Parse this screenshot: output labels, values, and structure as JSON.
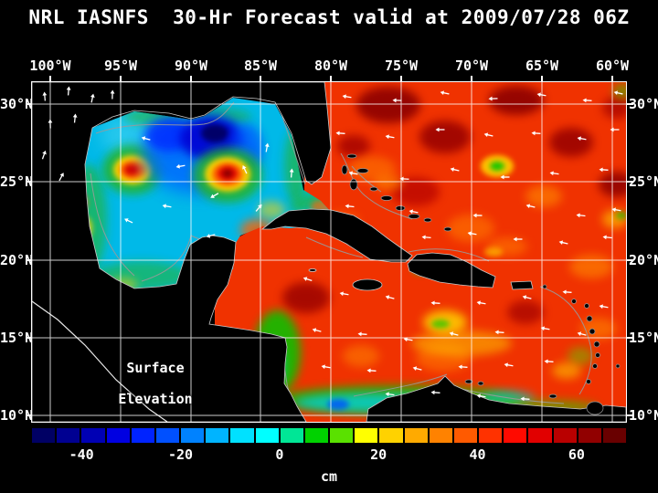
{
  "title": "NRL IASNFS  30-Hr Forecast valid at 2009/07/28 06Z",
  "plot": {
    "annotation": {
      "line1": "Surface",
      "line2": "Elevation"
    },
    "lon_labels": [
      "100°W",
      "95°W",
      "90°W",
      "85°W",
      "80°W",
      "75°W",
      "70°W",
      "65°W",
      "60°W"
    ],
    "lat_labels": [
      "30°N",
      "25°N",
      "20°N",
      "15°N",
      "10°N"
    ]
  },
  "colorbar": {
    "unit": "cm",
    "tick_labels": [
      "-40",
      "-20",
      "0",
      "20",
      "40",
      "60"
    ],
    "colors": [
      "#000064",
      "#000091",
      "#0000b4",
      "#0000e1",
      "#0023ff",
      "#0050ff",
      "#0082ff",
      "#00b4ff",
      "#00e1ff",
      "#00ffff",
      "#00e696",
      "#00d200",
      "#5ae100",
      "#ffff00",
      "#ffd200",
      "#ffaa00",
      "#ff8200",
      "#ff5a00",
      "#ff3200",
      "#ff0a00",
      "#e10000",
      "#b90000",
      "#910000",
      "#690000"
    ]
  },
  "chart_data": {
    "type": "heatmap",
    "title": "NRL IASNFS 30-Hr Forecast valid at 2009/07/28 06Z",
    "model": "NRL IASNFS",
    "forecast_hour": "30-Hr Forecast",
    "valid_time": "2009/07/28 06Z",
    "variable": "Surface Elevation",
    "unit": "cm",
    "x_axis": {
      "label": "longitude",
      "tick_labels": [
        "100°W",
        "95°W",
        "90°W",
        "85°W",
        "80°W",
        "75°W",
        "70°W",
        "65°W",
        "60°W"
      ],
      "range_deg_west": [
        100,
        60
      ]
    },
    "y_axis": {
      "label": "latitude",
      "tick_labels": [
        "30°N",
        "25°N",
        "20°N",
        "15°N",
        "10°N"
      ],
      "range_deg_north": [
        10,
        30
      ]
    },
    "color_scale": {
      "min": -50,
      "max": 70,
      "step": 5,
      "tick_values": [
        -40,
        -20,
        0,
        20,
        40,
        60
      ],
      "unit": "cm",
      "palette": "rainbow: dark blue -> blue -> cyan -> green -> yellow -> orange -> red -> dark red"
    },
    "overlays": [
      "white surface-current vector arrows",
      "white 5-degree lat/lon grid",
      "gray bathymetry/shelf contours",
      "black land mask (Gulf of Mexico, Caribbean, western Atlantic domain)"
    ],
    "features": [
      {
        "region": "Gulf of Mexico background",
        "approx_value_cm": -10
      },
      {
        "region": "cold cyclonic core, north-central Gulf (~90°W, 27.5°N)",
        "approx_value_cm": -45
      },
      {
        "region": "warm anticyclonic eddy with dark-red core, central Gulf (~87.5°W, 25.5°N)",
        "approx_value_cm": 55
      },
      {
        "region": "warm eddy, western Gulf (~94°W, 25.8°N)",
        "approx_value_cm": 40
      },
      {
        "region": "Loop Current / Florida Straits cyan-green band",
        "approx_value_cm": 0
      },
      {
        "region": "Atlantic north of the islands (background)",
        "approx_value_cm": 40
      },
      {
        "region": "dark-red highs, open Atlantic",
        "approx_value_cm": 65
      },
      {
        "region": "green low patch in Atlantic (~68°W, 26°N)",
        "approx_value_cm": 5
      },
      {
        "region": "Caribbean Sea background",
        "approx_value_cm": 35
      },
      {
        "region": "cyan-green low band along Nicaragua coast",
        "approx_value_cm": -5
      },
      {
        "region": "Panama-Colombia coastal low band with blue cores",
        "approx_value_cm": -20
      },
      {
        "region": "yellow-green low south of Hispaniola (~70°W, 16°N)",
        "approx_value_cm": 10
      }
    ],
    "current_vectors": "white arrows show surface current direction; predominantly westward flow across the Atlantic and Caribbean, rotational flow around Gulf eddies"
  }
}
